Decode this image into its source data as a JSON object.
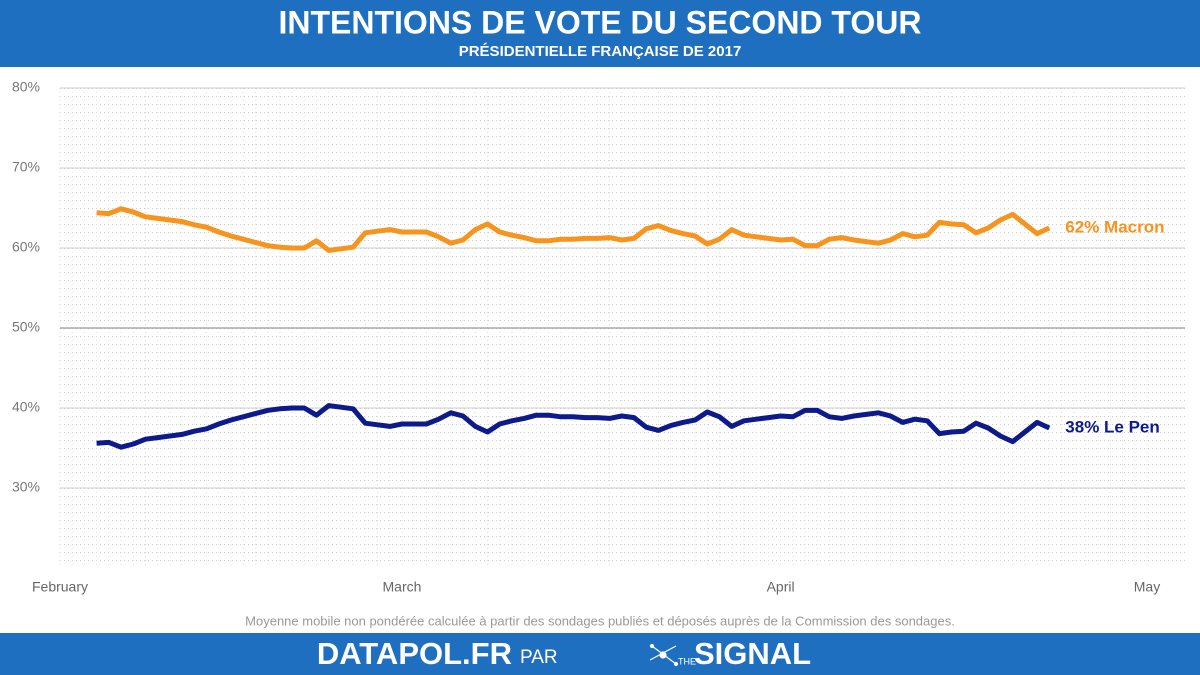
{
  "chart_data": {
    "type": "line",
    "title": "INTENTIONS DE VOTE DU SECOND TOUR",
    "subtitle": "PRÉSIDENTIELLE FRANÇAISE DE 2017",
    "note": "Moyenne mobile non pondérée calculée à partir des sondages publiés et déposés auprès de la Commission des sondages.",
    "categories": [
      "February",
      null,
      null,
      null,
      null,
      null,
      null,
      null,
      null,
      null,
      null,
      null,
      null,
      null,
      null,
      null,
      null,
      null,
      null,
      null,
      null,
      null,
      null,
      null,
      null,
      null,
      null,
      null,
      "March",
      null,
      null,
      null,
      null,
      null,
      null,
      null,
      null,
      null,
      null,
      null,
      null,
      null,
      null,
      null,
      null,
      null,
      null,
      null,
      null,
      null,
      null,
      null,
      null,
      null,
      null,
      null,
      null,
      null,
      null,
      "April",
      null,
      null,
      null,
      null,
      null,
      null,
      null,
      null,
      null,
      null,
      null,
      null,
      null,
      null,
      null,
      null,
      null,
      null,
      null,
      null,
      null,
      null,
      null,
      null,
      null,
      null,
      null,
      null,
      null,
      "May"
    ],
    "series": [
      {
        "name": "62% Macron",
        "color": "#f7941d",
        "values": [
          null,
          null,
          null,
          64.4,
          64.3,
          64.9,
          64.5,
          63.9,
          63.7,
          63.5,
          63.3,
          62.9,
          62.6,
          62.0,
          61.5,
          61.1,
          60.7,
          60.3,
          60.1,
          60.0,
          60.0,
          60.9,
          59.7,
          59.9,
          60.1,
          61.9,
          62.1,
          62.3,
          62.0,
          62.0,
          62.0,
          61.4,
          60.6,
          61.0,
          62.3,
          63.0,
          62.0,
          61.6,
          61.3,
          60.9,
          60.9,
          61.1,
          61.1,
          61.2,
          61.2,
          61.3,
          61.0,
          61.2,
          62.4,
          62.8,
          62.2,
          61.8,
          61.5,
          60.5,
          61.1,
          62.3,
          61.6,
          61.4,
          61.2,
          61.0,
          61.1,
          60.3,
          60.3,
          61.1,
          61.3,
          61.0,
          60.8,
          60.6,
          61.0,
          61.8,
          61.4,
          61.6,
          63.2,
          63.0,
          62.9,
          61.9,
          62.5,
          63.5,
          64.2,
          63.0,
          61.8,
          62.5,
          null,
          null,
          null,
          null,
          null,
          null,
          null,
          null
        ]
      },
      {
        "name": "38% Le Pen",
        "color": "#0d1a8c",
        "values": [
          null,
          null,
          null,
          35.6,
          35.7,
          35.1,
          35.5,
          36.1,
          36.3,
          36.5,
          36.7,
          37.1,
          37.4,
          38.0,
          38.5,
          38.9,
          39.3,
          39.7,
          39.9,
          40.0,
          40.0,
          39.1,
          40.3,
          40.1,
          39.9,
          38.1,
          37.9,
          37.7,
          38.0,
          38.0,
          38.0,
          38.6,
          39.4,
          39.0,
          37.7,
          37.0,
          38.0,
          38.4,
          38.7,
          39.1,
          39.1,
          38.9,
          38.9,
          38.8,
          38.8,
          38.7,
          39.0,
          38.8,
          37.6,
          37.2,
          37.8,
          38.2,
          38.5,
          39.5,
          38.9,
          37.7,
          38.4,
          38.6,
          38.8,
          39.0,
          38.9,
          39.7,
          39.7,
          38.9,
          38.7,
          39.0,
          39.2,
          39.4,
          39.0,
          38.2,
          38.6,
          38.4,
          36.8,
          37.0,
          37.1,
          38.1,
          37.5,
          36.5,
          35.8,
          37.0,
          38.2,
          37.5,
          null,
          null,
          null,
          null,
          null,
          null,
          null,
          null
        ]
      }
    ],
    "ylim": [
      20,
      80
    ],
    "yticks": [
      {
        "value": 30,
        "label": "30%"
      },
      {
        "value": 40,
        "label": "40%"
      },
      {
        "value": 50,
        "label": "50%"
      },
      {
        "value": 60,
        "label": "60%"
      },
      {
        "value": 70,
        "label": "70%"
      },
      {
        "value": 80,
        "label": "80%"
      }
    ],
    "grid": true
  },
  "footer": {
    "brand": "DATAPOL.FR",
    "by": "PAR",
    "logo_small": "THE",
    "logo": "SIGNAL"
  }
}
